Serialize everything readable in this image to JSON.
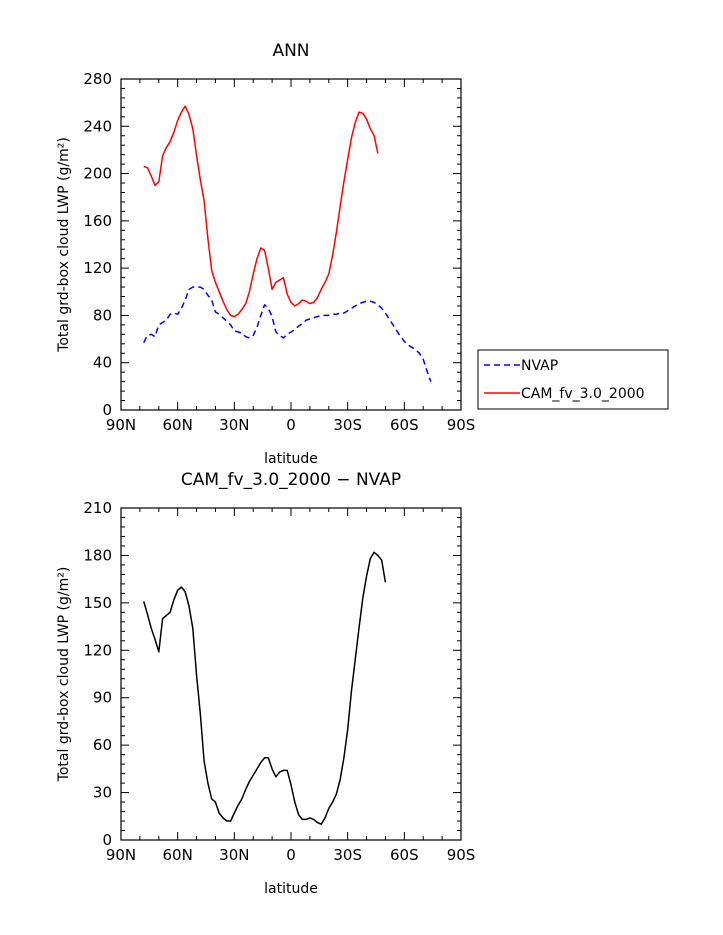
{
  "chart_data": [
    {
      "type": "line",
      "title": "ANN",
      "xlabel": "latitude",
      "ylabel": "Total grd-box cloud LWP (g/m²)",
      "xlim": [
        90,
        -90
      ],
      "ylim": [
        0,
        280
      ],
      "x_ticks": [
        90,
        60,
        30,
        0,
        -30,
        -60,
        -90
      ],
      "x_tick_labels": [
        "90N",
        "60N",
        "30N",
        "0",
        "30S",
        "60S",
        "90S"
      ],
      "y_ticks": [
        0,
        40,
        80,
        120,
        160,
        200,
        240,
        280
      ],
      "y_tick_labels": [
        "0",
        "40",
        "80",
        "120",
        "160",
        "200",
        "240",
        "280"
      ],
      "legend_position": "right",
      "grid": false,
      "series": [
        {
          "name": "NVAP",
          "color": "#0000ff",
          "line_style": "dashed",
          "points": [
            [
              78,
              57
            ],
            [
              76,
              63
            ],
            [
              74,
              64
            ],
            [
              72,
              62
            ],
            [
              70,
              72
            ],
            [
              68,
              74
            ],
            [
              66,
              76
            ],
            [
              64,
              81
            ],
            [
              62,
              82
            ],
            [
              60,
              81
            ],
            [
              58,
              86
            ],
            [
              56,
              93
            ],
            [
              54,
              102
            ],
            [
              52,
              104
            ],
            [
              50,
              104
            ],
            [
              48,
              104
            ],
            [
              46,
              102
            ],
            [
              44,
              97
            ],
            [
              42,
              93
            ],
            [
              40,
              83
            ],
            [
              38,
              81
            ],
            [
              36,
              78
            ],
            [
              34,
              75
            ],
            [
              32,
              72
            ],
            [
              30,
              67
            ],
            [
              28,
              66
            ],
            [
              26,
              65
            ],
            [
              24,
              62
            ],
            [
              22,
              61
            ],
            [
              20,
              63
            ],
            [
              18,
              70
            ],
            [
              16,
              80
            ],
            [
              14,
              89
            ],
            [
              12,
              86
            ],
            [
              10,
              79
            ],
            [
              8,
              66
            ],
            [
              6,
              63
            ],
            [
              4,
              61
            ],
            [
              2,
              64
            ],
            [
              0,
              66
            ],
            [
              -2,
              68
            ],
            [
              -4,
              71
            ],
            [
              -6,
              73
            ],
            [
              -8,
              76
            ],
            [
              -10,
              77
            ],
            [
              -12,
              78
            ],
            [
              -14,
              79
            ],
            [
              -16,
              80
            ],
            [
              -18,
              80
            ],
            [
              -20,
              80
            ],
            [
              -22,
              81
            ],
            [
              -24,
              81
            ],
            [
              -26,
              82
            ],
            [
              -28,
              82
            ],
            [
              -30,
              84
            ],
            [
              -32,
              86
            ],
            [
              -34,
              88
            ],
            [
              -36,
              90
            ],
            [
              -38,
              91
            ],
            [
              -40,
              92
            ],
            [
              -42,
              92
            ],
            [
              -44,
              91
            ],
            [
              -46,
              89
            ],
            [
              -48,
              86
            ],
            [
              -50,
              82
            ],
            [
              -52,
              77
            ],
            [
              -54,
              72
            ],
            [
              -56,
              67
            ],
            [
              -58,
              62
            ],
            [
              -60,
              58
            ],
            [
              -62,
              55
            ],
            [
              -64,
              53
            ],
            [
              -66,
              51
            ],
            [
              -68,
              48
            ],
            [
              -70,
              43
            ],
            [
              -72,
              33
            ],
            [
              -74,
              24
            ]
          ]
        },
        {
          "name": "CAM_fv_3.0_2000",
          "color": "#ff0000",
          "line_style": "solid",
          "points": [
            [
              78,
              206
            ],
            [
              76,
              205
            ],
            [
              74,
              198
            ],
            [
              72,
              190
            ],
            [
              70,
              193
            ],
            [
              68,
              215
            ],
            [
              66,
              222
            ],
            [
              64,
              227
            ],
            [
              62,
              235
            ],
            [
              60,
              245
            ],
            [
              58,
              252
            ],
            [
              56,
              257
            ],
            [
              54,
              250
            ],
            [
              52,
              238
            ],
            [
              50,
              215
            ],
            [
              48,
              195
            ],
            [
              46,
              177
            ],
            [
              44,
              145
            ],
            [
              42,
              118
            ],
            [
              40,
              108
            ],
            [
              38,
              100
            ],
            [
              36,
              92
            ],
            [
              34,
              85
            ],
            [
              32,
              80
            ],
            [
              30,
              79
            ],
            [
              28,
              81
            ],
            [
              26,
              85
            ],
            [
              24,
              90
            ],
            [
              22,
              100
            ],
            [
              20,
              115
            ],
            [
              18,
              128
            ],
            [
              16,
              137
            ],
            [
              14,
              135
            ],
            [
              12,
              120
            ],
            [
              10,
              102
            ],
            [
              8,
              108
            ],
            [
              6,
              110
            ],
            [
              4,
              112
            ],
            [
              2,
              98
            ],
            [
              0,
              91
            ],
            [
              -2,
              88
            ],
            [
              -4,
              90
            ],
            [
              -6,
              93
            ],
            [
              -8,
              92
            ],
            [
              -10,
              90
            ],
            [
              -12,
              91
            ],
            [
              -14,
              95
            ],
            [
              -16,
              102
            ],
            [
              -18,
              108
            ],
            [
              -20,
              115
            ],
            [
              -22,
              131
            ],
            [
              -24,
              150
            ],
            [
              -26,
              172
            ],
            [
              -28,
              193
            ],
            [
              -30,
              212
            ],
            [
              -32,
              230
            ],
            [
              -34,
              243
            ],
            [
              -36,
              252
            ],
            [
              -38,
              251
            ],
            [
              -40,
              246
            ],
            [
              -42,
              238
            ],
            [
              -44,
              232
            ],
            [
              -46,
              217
            ]
          ]
        }
      ]
    },
    {
      "type": "line",
      "title": "CAM_fv_3.0_2000 − NVAP",
      "xlabel": "latitude",
      "ylabel": "Total grd-box cloud LWP (g/m²)",
      "xlim": [
        90,
        -90
      ],
      "ylim": [
        0,
        210
      ],
      "x_ticks": [
        90,
        60,
        30,
        0,
        -30,
        -60,
        -90
      ],
      "x_tick_labels": [
        "90N",
        "60N",
        "30N",
        "0",
        "30S",
        "60S",
        "90S"
      ],
      "y_ticks": [
        0,
        30,
        60,
        90,
        120,
        150,
        180,
        210
      ],
      "y_tick_labels": [
        "0",
        "30",
        "60",
        "90",
        "120",
        "150",
        "180",
        "210"
      ],
      "grid": false,
      "series": [
        {
          "color": "#000000",
          "line_style": "solid",
          "points": [
            [
              78,
              151
            ],
            [
              76,
              143
            ],
            [
              74,
              134
            ],
            [
              72,
              127
            ],
            [
              70,
              119
            ],
            [
              68,
              140
            ],
            [
              66,
              142
            ],
            [
              64,
              144
            ],
            [
              62,
              152
            ],
            [
              60,
              158
            ],
            [
              58,
              160
            ],
            [
              56,
              157
            ],
            [
              54,
              148
            ],
            [
              52,
              134
            ],
            [
              50,
              104
            ],
            [
              48,
              80
            ],
            [
              46,
              50
            ],
            [
              44,
              36
            ],
            [
              42,
              26
            ],
            [
              40,
              24
            ],
            [
              38,
              17
            ],
            [
              36,
              14
            ],
            [
              34,
              12
            ],
            [
              32,
              12
            ],
            [
              30,
              17
            ],
            [
              28,
              22
            ],
            [
              26,
              26
            ],
            [
              24,
              32
            ],
            [
              22,
              37
            ],
            [
              20,
              41
            ],
            [
              18,
              45
            ],
            [
              16,
              49
            ],
            [
              14,
              52
            ],
            [
              12,
              52
            ],
            [
              10,
              45
            ],
            [
              8,
              40
            ],
            [
              6,
              43
            ],
            [
              4,
              44
            ],
            [
              2,
              44
            ],
            [
              0,
              35
            ],
            [
              -2,
              24
            ],
            [
              -4,
              16
            ],
            [
              -6,
              13
            ],
            [
              -8,
              13
            ],
            [
              -10,
              14
            ],
            [
              -12,
              13
            ],
            [
              -14,
              11
            ],
            [
              -16,
              10
            ],
            [
              -18,
              14
            ],
            [
              -20,
              20
            ],
            [
              -22,
              24
            ],
            [
              -24,
              29
            ],
            [
              -26,
              38
            ],
            [
              -28,
              52
            ],
            [
              -30,
              70
            ],
            [
              -32,
              94
            ],
            [
              -34,
              114
            ],
            [
              -36,
              134
            ],
            [
              -38,
              153
            ],
            [
              -40,
              167
            ],
            [
              -42,
              178
            ],
            [
              -44,
              182
            ],
            [
              -46,
              180
            ],
            [
              -48,
              177
            ],
            [
              -50,
              163
            ]
          ]
        }
      ]
    }
  ]
}
